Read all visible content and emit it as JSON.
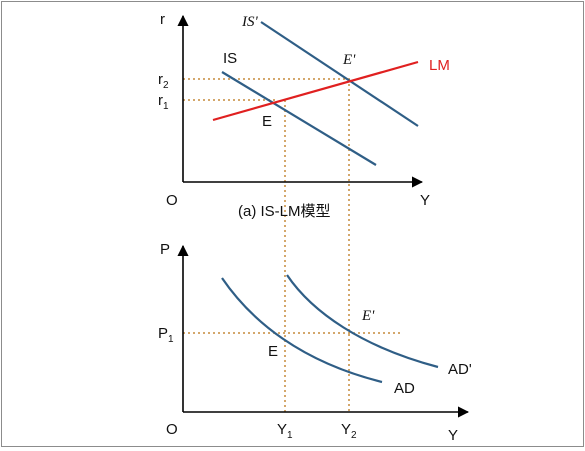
{
  "colors": {
    "axis": "#000000",
    "is_curves": "#2f5e86",
    "lm_curve": "#e02020",
    "guides": "#c58a3a",
    "border": "#8c8c8c"
  },
  "top_panel": {
    "y_axis_label": "r",
    "x_axis_label": "Y",
    "origin": "O",
    "caption": "(a) IS-LM模型",
    "r2": {
      "base": "r",
      "sub": "2"
    },
    "r1": {
      "base": "r",
      "sub": "1"
    },
    "is_label": "IS",
    "is_prime_label": "IS'",
    "lm_label": "LM",
    "eq_label": "E",
    "eq_prime_label": "E'"
  },
  "bottom_panel": {
    "y_axis_label": "P",
    "x_axis_label": "Y",
    "origin": "O",
    "p1": {
      "base": "P",
      "sub": "1"
    },
    "y1": {
      "base": "Y",
      "sub": "1"
    },
    "y2": {
      "base": "Y",
      "sub": "2"
    },
    "ad_label": "AD",
    "ad_prime_label": "AD'",
    "eq_label": "E",
    "eq_prime_label": "E'"
  }
}
